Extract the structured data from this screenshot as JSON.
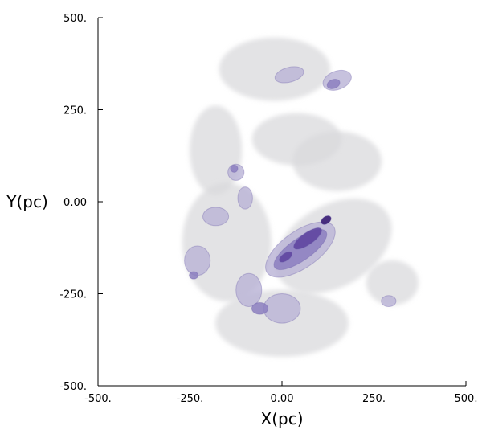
{
  "chart_data": {
    "type": "contour",
    "xlabel": "X(pc)",
    "ylabel": "Y(pc)",
    "xlim": [
      -500,
      500
    ],
    "ylim": [
      -500,
      500
    ],
    "xticks": [
      {
        "value": -500,
        "label": "-500."
      },
      {
        "value": -250,
        "label": "-250."
      },
      {
        "value": 0,
        "label": "0.00"
      },
      {
        "value": 250,
        "label": "250."
      },
      {
        "value": 500,
        "label": "500."
      }
    ],
    "yticks": [
      {
        "value": 500,
        "label": "500."
      },
      {
        "value": 250,
        "label": "250."
      },
      {
        "value": 0,
        "label": "0.00"
      },
      {
        "value": -250,
        "label": "-250."
      },
      {
        "value": -500,
        "label": "-500."
      }
    ],
    "colors": {
      "envelope": "#d9d9dc",
      "low": "#b9b3d6",
      "mid": "#8c7fc0",
      "high": "#5f46a1",
      "peak": "#3f2478"
    },
    "components": [
      {
        "x": -20,
        "y": 360,
        "rx": 150,
        "ry": 85,
        "rot": 0,
        "level": 0
      },
      {
        "x": -180,
        "y": 140,
        "rx": 70,
        "ry": 120,
        "rot": 0,
        "level": 0
      },
      {
        "x": 150,
        "y": 110,
        "rx": 120,
        "ry": 80,
        "rot": 0,
        "level": 0
      },
      {
        "x": -150,
        "y": -110,
        "rx": 120,
        "ry": 160,
        "rot": 0,
        "level": 0
      },
      {
        "x": 0,
        "y": -330,
        "rx": 180,
        "ry": 90,
        "rot": 0,
        "level": 0
      },
      {
        "x": 140,
        "y": -120,
        "rx": 170,
        "ry": 110,
        "rot": -30,
        "level": 0
      },
      {
        "x": 300,
        "y": -220,
        "rx": 70,
        "ry": 60,
        "rot": 0,
        "level": 0
      },
      {
        "x": 40,
        "y": 170,
        "rx": 120,
        "ry": 70,
        "rot": 0,
        "level": 0
      },
      {
        "x": 20,
        "y": 345,
        "rx": 40,
        "ry": 20,
        "rot": -15,
        "level": 1
      },
      {
        "x": 150,
        "y": 330,
        "rx": 40,
        "ry": 25,
        "rot": -20,
        "level": 1
      },
      {
        "x": -125,
        "y": 80,
        "rx": 22,
        "ry": 22,
        "rot": 0,
        "level": 1
      },
      {
        "x": -100,
        "y": 10,
        "rx": 20,
        "ry": 30,
        "rot": 0,
        "level": 1
      },
      {
        "x": -180,
        "y": -40,
        "rx": 35,
        "ry": 25,
        "rot": 0,
        "level": 1
      },
      {
        "x": -230,
        "y": -160,
        "rx": 35,
        "ry": 40,
        "rot": 0,
        "level": 1
      },
      {
        "x": -90,
        "y": -240,
        "rx": 35,
        "ry": 45,
        "rot": 0,
        "level": 1
      },
      {
        "x": 0,
        "y": -290,
        "rx": 50,
        "ry": 40,
        "rot": 0,
        "level": 1
      },
      {
        "x": 50,
        "y": -130,
        "rx": 110,
        "ry": 50,
        "rot": -35,
        "level": 1
      },
      {
        "x": 290,
        "y": -270,
        "rx": 20,
        "ry": 15,
        "rot": 0,
        "level": 1
      },
      {
        "x": 140,
        "y": 320,
        "rx": 18,
        "ry": 12,
        "rot": -20,
        "level": 2
      },
      {
        "x": 50,
        "y": -130,
        "rx": 85,
        "ry": 30,
        "rot": -35,
        "level": 2
      },
      {
        "x": -130,
        "y": 90,
        "rx": 10,
        "ry": 10,
        "rot": 0,
        "level": 2
      },
      {
        "x": -240,
        "y": -200,
        "rx": 12,
        "ry": 10,
        "rot": 0,
        "level": 2
      },
      {
        "x": -60,
        "y": -290,
        "rx": 22,
        "ry": 16,
        "rot": 0,
        "level": 2
      },
      {
        "x": 70,
        "y": -100,
        "rx": 45,
        "ry": 16,
        "rot": -35,
        "level": 3
      },
      {
        "x": 10,
        "y": -150,
        "rx": 20,
        "ry": 10,
        "rot": -35,
        "level": 3
      },
      {
        "x": 120,
        "y": -50,
        "rx": 15,
        "ry": 10,
        "rot": -35,
        "level": 4
      }
    ]
  }
}
